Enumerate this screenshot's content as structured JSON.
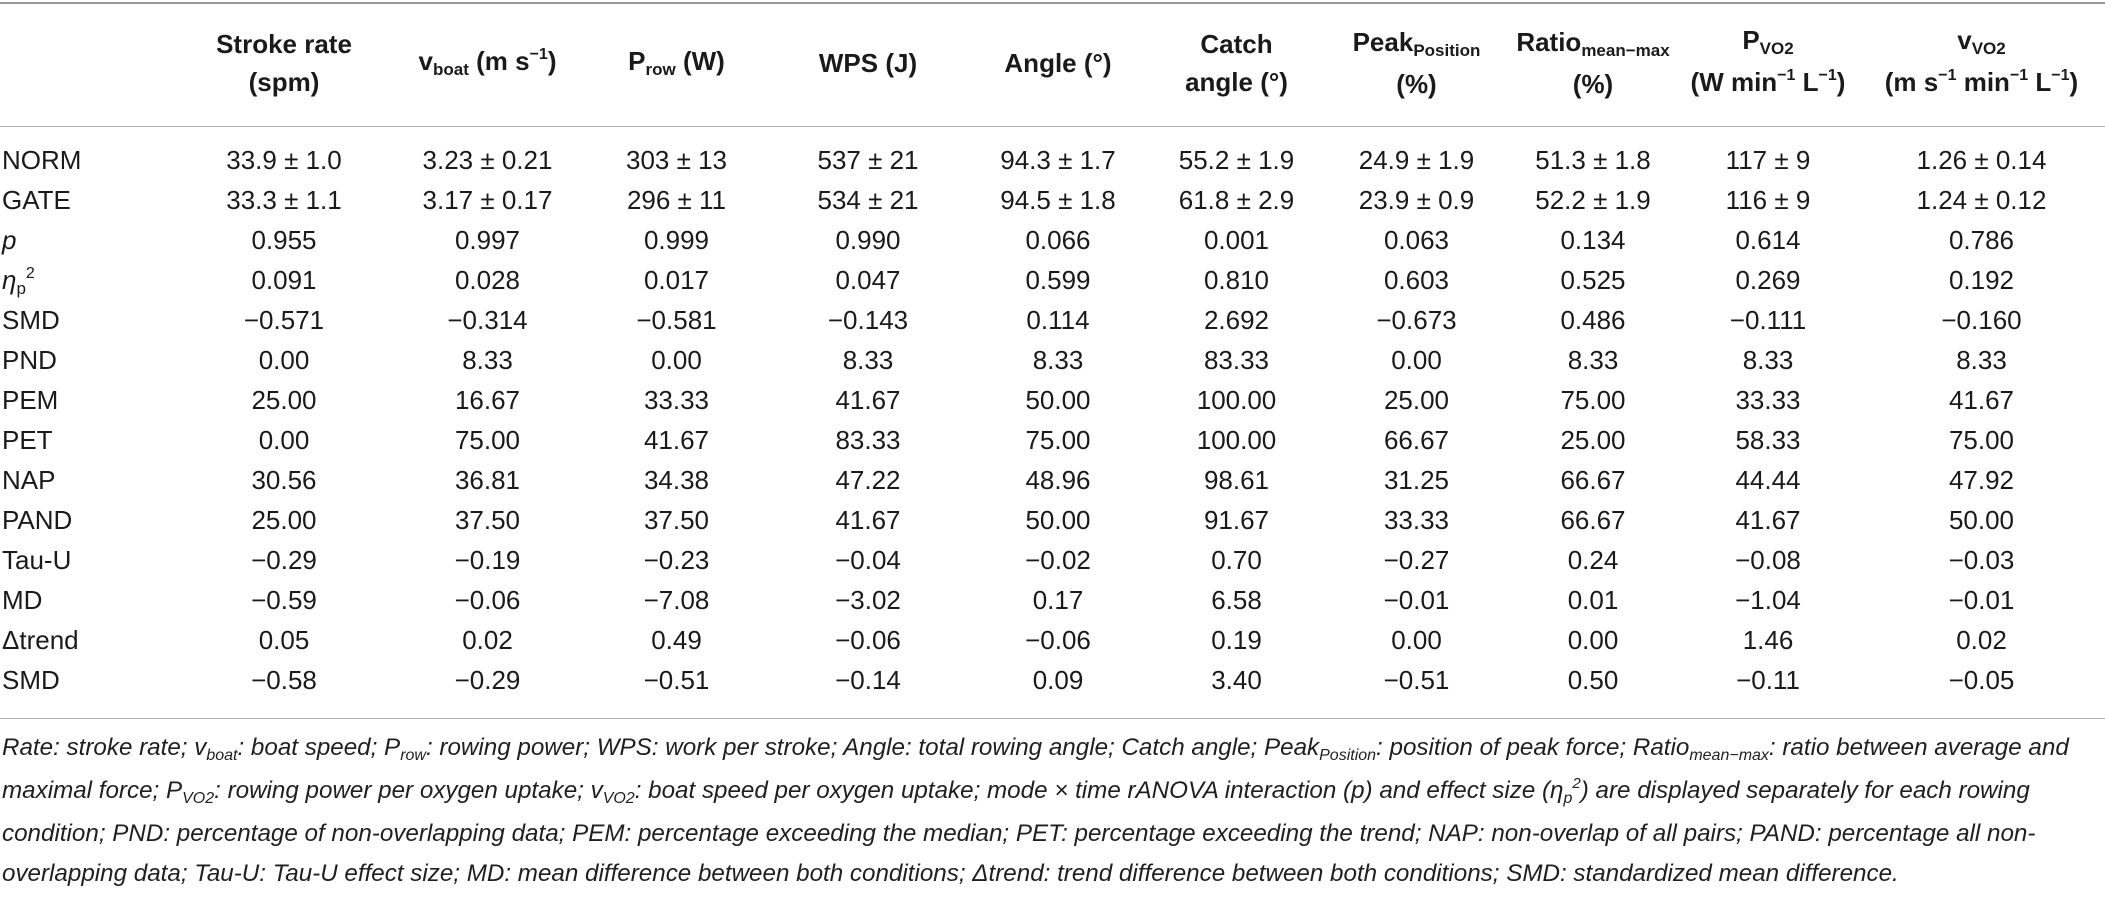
{
  "headers": {
    "blank": "",
    "stroke_rate": {
      "l1": "Stroke rate",
      "l2": "(spm)"
    },
    "vboat": {
      "main": "v",
      "sub": "boat",
      "unit": " (m s",
      "sup": "−1",
      "close": ")"
    },
    "prow": {
      "main": "P",
      "sub": "row",
      "unit": " (W)"
    },
    "wps": "WPS (J)",
    "angle": "Angle (°)",
    "catch": {
      "l1": "Catch",
      "l2": "angle (°)"
    },
    "peak": {
      "main": "Peak",
      "sub": "Position",
      "l2": "(%)"
    },
    "ratio": {
      "main": "Ratio",
      "sub": "mean−max",
      "l2": "(%)"
    },
    "pvo2": {
      "main": "P",
      "sub": "VO2",
      "l2a": "(W min",
      "sup1": "−1",
      "l2b": " L",
      "sup2": "−1",
      "l2c": ")"
    },
    "vvo2": {
      "main": "v",
      "sub": "VO2",
      "l2a": "(m s",
      "sup1": "−1",
      "l2b": " min",
      "sup2": "−1",
      "l2c": " L",
      "sup3": "−1",
      "l2d": ")"
    }
  },
  "row_labels": {
    "norm": "NORM",
    "gate": "GATE",
    "p": "p",
    "eta_main": "η",
    "eta_sub": "p",
    "eta_sup": "2",
    "smd1": "SMD",
    "pnd": "PND",
    "pem": "PEM",
    "pet": "PET",
    "nap": "NAP",
    "pand": "PAND",
    "tau": "Tau-U",
    "md": "MD",
    "dtrend": "Δtrend",
    "smd2": "SMD"
  },
  "rows": {
    "norm": [
      "33.9 ± 1.0",
      "3.23 ± 0.21",
      "303 ± 13",
      "537 ± 21",
      "94.3 ± 1.7",
      "55.2 ± 1.9",
      "24.9 ± 1.9",
      "51.3 ± 1.8",
      "117 ± 9",
      "1.26 ± 0.14"
    ],
    "gate": [
      "33.3 ± 1.1",
      "3.17 ± 0.17",
      "296 ± 11",
      "534 ± 21",
      "94.5 ± 1.8",
      "61.8 ± 2.9",
      "23.9 ± 0.9",
      "52.2 ± 1.9",
      "116 ± 9",
      "1.24 ± 0.12"
    ],
    "p": [
      "0.955",
      "0.997",
      "0.999",
      "0.990",
      "0.066",
      "0.001",
      "0.063",
      "0.134",
      "0.614",
      "0.786"
    ],
    "eta": [
      "0.091",
      "0.028",
      "0.017",
      "0.047",
      "0.599",
      "0.810",
      "0.603",
      "0.525",
      "0.269",
      "0.192"
    ],
    "smd1": [
      "−0.571",
      "−0.314",
      "−0.581",
      "−0.143",
      "0.114",
      "2.692",
      "−0.673",
      "0.486",
      "−0.111",
      "−0.160"
    ],
    "pnd": [
      "0.00",
      "8.33",
      "0.00",
      "8.33",
      "8.33",
      "83.33",
      "0.00",
      "8.33",
      "8.33",
      "8.33"
    ],
    "pem": [
      "25.00",
      "16.67",
      "33.33",
      "41.67",
      "50.00",
      "100.00",
      "25.00",
      "75.00",
      "33.33",
      "41.67"
    ],
    "pet": [
      "0.00",
      "75.00",
      "41.67",
      "83.33",
      "75.00",
      "100.00",
      "66.67",
      "25.00",
      "58.33",
      "75.00"
    ],
    "nap": [
      "30.56",
      "36.81",
      "34.38",
      "47.22",
      "48.96",
      "98.61",
      "31.25",
      "66.67",
      "44.44",
      "47.92"
    ],
    "pand": [
      "25.00",
      "37.50",
      "37.50",
      "41.67",
      "50.00",
      "91.67",
      "33.33",
      "66.67",
      "41.67",
      "50.00"
    ],
    "tau": [
      "−0.29",
      "−0.19",
      "−0.23",
      "−0.04",
      "−0.02",
      "0.70",
      "−0.27",
      "0.24",
      "−0.08",
      "−0.03"
    ],
    "md": [
      "−0.59",
      "−0.06",
      "−7.08",
      "−3.02",
      "0.17",
      "6.58",
      "−0.01",
      "0.01",
      "−1.04",
      "−0.01"
    ],
    "dtrend": [
      "0.05",
      "0.02",
      "0.49",
      "−0.06",
      "−0.06",
      "0.19",
      "0.00",
      "0.00",
      "1.46",
      "0.02"
    ],
    "smd2": [
      "−0.58",
      "−0.29",
      "−0.51",
      "−0.14",
      "0.09",
      "3.40",
      "−0.51",
      "0.50",
      "−0.11",
      "−0.05"
    ]
  },
  "footnote": {
    "a": "Rate: stroke rate; v",
    "a_sub": "boat",
    "b": ": boat speed; P",
    "b_sub": "row",
    "c": ": rowing power; WPS: work per stroke; Angle: total rowing angle; Catch angle; Peak",
    "c_sub": "Position",
    "d": ": position of peak force; Ratio",
    "d_sub": "mean−max",
    "e": ": ratio between average and maximal force; P",
    "e_sub": "VO2",
    "f": ": rowing power per oxygen uptake; v",
    "f_sub": "VO2",
    "g": ": boat speed per oxygen uptake; mode × time rANOVA interaction (p) and effect size (η",
    "g_sub": "p",
    "g_sup": "2",
    "h": ") are displayed separately for each rowing condition; PND: percentage of non-overlapping data; PEM: percentage exceeding the median; PET: percentage exceeding the trend; NAP: non-overlap of all pairs; PAND: percentage all non-overlapping data; Tau-U: Tau-U effect size; MD: mean difference between both conditions; Δtrend: trend difference between both conditions; SMD: standardized mean difference."
  }
}
